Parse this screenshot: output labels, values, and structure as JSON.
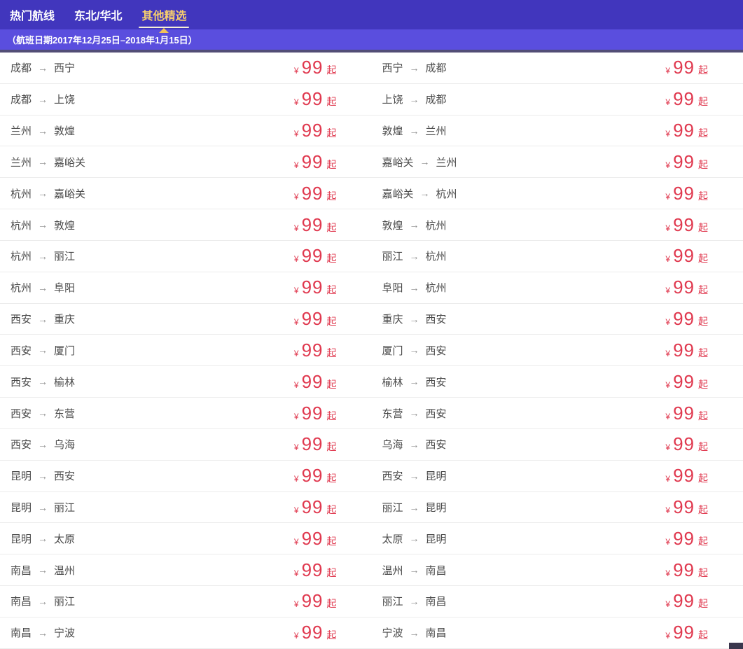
{
  "tabs": {
    "items": [
      {
        "label": "热门航线",
        "active": false
      },
      {
        "label": "东北/华北",
        "active": false
      },
      {
        "label": "其他精选",
        "active": true
      }
    ]
  },
  "banner": {
    "date_range": "（航班日期2017年12月25日–2018年1月15日）"
  },
  "symbols": {
    "arrow": "→"
  },
  "price": {
    "currency": "¥",
    "amount": "99",
    "suffix": "起"
  },
  "colors": {
    "tabbar_bg": "#4136BD",
    "active_tab_gold": "#F6CE6E",
    "banner_bg": "#5A4EDE",
    "banner_border": "#524E76",
    "price_red": "#E0394F",
    "route_text": "#4A4A4A"
  },
  "routes": [
    {
      "out": {
        "from": "成都",
        "to": "西宁"
      },
      "ret": {
        "from": "西宁",
        "to": "成都"
      }
    },
    {
      "out": {
        "from": "成都",
        "to": "上饶"
      },
      "ret": {
        "from": "上饶",
        "to": "成都"
      }
    },
    {
      "out": {
        "from": "兰州",
        "to": "敦煌"
      },
      "ret": {
        "from": "敦煌",
        "to": "兰州"
      }
    },
    {
      "out": {
        "from": "兰州",
        "to": "嘉峪关"
      },
      "ret": {
        "from": "嘉峪关",
        "to": "兰州"
      }
    },
    {
      "out": {
        "from": "杭州",
        "to": "嘉峪关"
      },
      "ret": {
        "from": "嘉峪关",
        "to": "杭州"
      }
    },
    {
      "out": {
        "from": "杭州",
        "to": "敦煌"
      },
      "ret": {
        "from": "敦煌",
        "to": "杭州"
      }
    },
    {
      "out": {
        "from": "杭州",
        "to": "丽江"
      },
      "ret": {
        "from": "丽江",
        "to": "杭州"
      }
    },
    {
      "out": {
        "from": "杭州",
        "to": "阜阳"
      },
      "ret": {
        "from": "阜阳",
        "to": "杭州"
      }
    },
    {
      "out": {
        "from": "西安",
        "to": "重庆"
      },
      "ret": {
        "from": "重庆",
        "to": "西安"
      }
    },
    {
      "out": {
        "from": "西安",
        "to": "厦门"
      },
      "ret": {
        "from": "厦门",
        "to": "西安"
      }
    },
    {
      "out": {
        "from": "西安",
        "to": "榆林"
      },
      "ret": {
        "from": "榆林",
        "to": "西安"
      }
    },
    {
      "out": {
        "from": "西安",
        "to": "东营"
      },
      "ret": {
        "from": "东营",
        "to": "西安"
      }
    },
    {
      "out": {
        "from": "西安",
        "to": "乌海"
      },
      "ret": {
        "from": "乌海",
        "to": "西安"
      }
    },
    {
      "out": {
        "from": "昆明",
        "to": "西安"
      },
      "ret": {
        "from": "西安",
        "to": "昆明"
      }
    },
    {
      "out": {
        "from": "昆明",
        "to": "丽江"
      },
      "ret": {
        "from": "丽江",
        "to": "昆明"
      }
    },
    {
      "out": {
        "from": "昆明",
        "to": "太原"
      },
      "ret": {
        "from": "太原",
        "to": "昆明"
      }
    },
    {
      "out": {
        "from": "南昌",
        "to": "温州"
      },
      "ret": {
        "from": "温州",
        "to": "南昌"
      }
    },
    {
      "out": {
        "from": "南昌",
        "to": "丽江"
      },
      "ret": {
        "from": "丽江",
        "to": "南昌"
      }
    },
    {
      "out": {
        "from": "南昌",
        "to": "宁波"
      },
      "ret": {
        "from": "宁波",
        "to": "南昌"
      }
    }
  ]
}
